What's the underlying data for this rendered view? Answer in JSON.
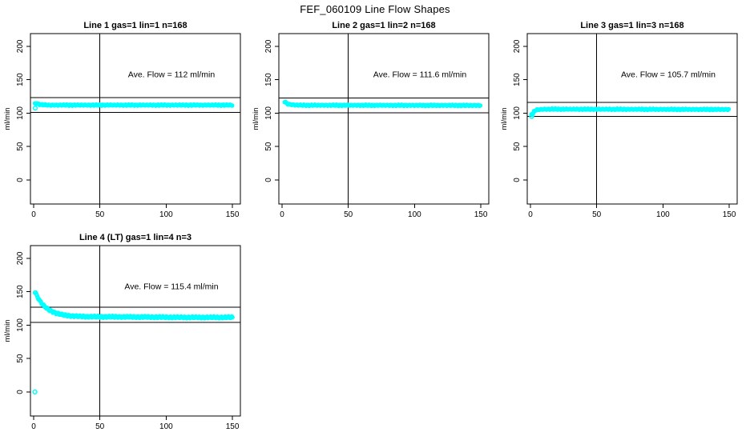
{
  "page": {
    "title": "FEF_060109  Line Flow Shapes"
  },
  "chart_data": [
    {
      "type": "scatter",
      "title": "Line 1 gas=1 lin=1 n=168",
      "annotation": {
        "text": "Ave. Flow =  112  ml/min",
        "x": 104,
        "y": 154
      },
      "ave_flow": 112,
      "hlines": [
        100.8,
        123.2
      ],
      "vline_x": 50,
      "xticks": [
        0,
        50,
        100,
        150
      ],
      "yticks": [
        0,
        50,
        100,
        150,
        200
      ],
      "xlim": [
        -2.4,
        156
      ],
      "ylim": [
        -36,
        219
      ],
      "xlabel": "",
      "ylabel": "ml/min",
      "grid": false,
      "marker": "open-circle",
      "color": "#00FFFF",
      "profile": {
        "x_start": 1,
        "x_end": 150,
        "step": 0.6,
        "wiggle": 1.0,
        "anchors": [
          [
            1,
            114.5
          ],
          [
            2,
            114.8
          ],
          [
            3,
            113.8
          ],
          [
            5,
            112.8
          ],
          [
            8,
            112.3
          ],
          [
            12,
            112
          ],
          [
            150,
            112
          ]
        ]
      },
      "outliers": [
        [
          1.2,
          107.5
        ]
      ]
    },
    {
      "type": "scatter",
      "title": "Line 2 gas=1 lin=2 n=168",
      "annotation": {
        "text": "Ave. Flow =  111.6  ml/min",
        "x": 104,
        "y": 154
      },
      "ave_flow": 111.6,
      "hlines": [
        100.44,
        122.76
      ],
      "vline_x": 50,
      "xticks": [
        0,
        50,
        100,
        150
      ],
      "yticks": [
        0,
        50,
        100,
        150,
        200
      ],
      "xlim": [
        -2.4,
        156
      ],
      "ylim": [
        -36,
        219
      ],
      "xlabel": "",
      "ylabel": "ml/min",
      "grid": false,
      "marker": "open-circle",
      "color": "#00FFFF",
      "profile": {
        "x_start": 2,
        "x_end": 150,
        "step": 0.6,
        "wiggle": 1.0,
        "anchors": [
          [
            2,
            117
          ],
          [
            3,
            115.5
          ],
          [
            4,
            114
          ],
          [
            6,
            113
          ],
          [
            9,
            112.3
          ],
          [
            14,
            111.8
          ],
          [
            150,
            111.5
          ]
        ]
      },
      "outliers": []
    },
    {
      "type": "scatter",
      "title": "Line 3 gas=1 lin=3 n=168",
      "annotation": {
        "text": "Ave. Flow =  105.7  ml/min",
        "x": 104,
        "y": 154
      },
      "ave_flow": 105.7,
      "hlines": [
        95.13,
        116.27
      ],
      "vline_x": 50,
      "xticks": [
        0,
        50,
        100,
        150
      ],
      "yticks": [
        0,
        50,
        100,
        150,
        200
      ],
      "xlim": [
        -2.4,
        156
      ],
      "ylim": [
        -36,
        219
      ],
      "xlabel": "",
      "ylabel": "ml/min",
      "grid": false,
      "marker": "open-circle",
      "color": "#00FFFF",
      "profile": {
        "x_start": 0.8,
        "x_end": 150,
        "step": 0.6,
        "wiggle": 1.0,
        "anchors": [
          [
            0.8,
            99
          ],
          [
            1.5,
            97.5
          ],
          [
            2.5,
            102
          ],
          [
            4,
            104.5
          ],
          [
            7,
            105.5
          ],
          [
            12,
            106
          ],
          [
            150,
            105.5
          ]
        ]
      },
      "outliers": [
        [
          1,
          95
        ]
      ]
    },
    {
      "type": "scatter",
      "title": "Line 4 (LT) gas=1 lin=4 n=3",
      "annotation": {
        "text": "Ave. Flow =  115.4  ml/min",
        "x": 104,
        "y": 154
      },
      "ave_flow": 115.4,
      "hlines": [
        103.86,
        126.94
      ],
      "vline_x": 50,
      "xticks": [
        0,
        50,
        100,
        150
      ],
      "yticks": [
        0,
        50,
        100,
        150,
        200
      ],
      "xlim": [
        -2.4,
        156
      ],
      "ylim": [
        -36,
        219
      ],
      "xlabel": "",
      "ylabel": "ml/min",
      "grid": false,
      "marker": "open-circle",
      "color": "#00FFFF",
      "profile": {
        "x_start": 1,
        "x_end": 150,
        "step": 0.5,
        "wiggle": 1.6,
        "anchors": [
          [
            1,
            150
          ],
          [
            2,
            146
          ],
          [
            3,
            142
          ],
          [
            4,
            138.5
          ],
          [
            5,
            135.5
          ],
          [
            6,
            133
          ],
          [
            7,
            130.5
          ],
          [
            8,
            128.5
          ],
          [
            10,
            125
          ],
          [
            12,
            122.5
          ],
          [
            14,
            120.5
          ],
          [
            16,
            118.8
          ],
          [
            18,
            117.5
          ],
          [
            20,
            116.5
          ],
          [
            23,
            115.3
          ],
          [
            26,
            114.4
          ],
          [
            30,
            113.6
          ],
          [
            35,
            113.1
          ],
          [
            40,
            112.8
          ],
          [
            50,
            112.4
          ],
          [
            70,
            112.1
          ],
          [
            100,
            111.9
          ],
          [
            150,
            111.6
          ]
        ]
      },
      "outliers": [
        [
          1,
          0
        ]
      ]
    }
  ]
}
